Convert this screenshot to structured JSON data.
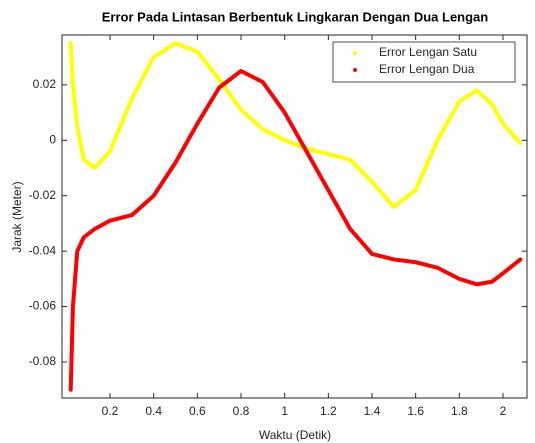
{
  "chart_data": {
    "type": "line",
    "title": "Error Pada Lintasan Berbentuk Lingkaran Dengan Dua Lengan",
    "xlabel": "Waktu (Detik)",
    "ylabel": "Jarak (Meter)",
    "x": [
      0.02,
      0.03,
      0.05,
      0.08,
      0.13,
      0.2,
      0.3,
      0.4,
      0.5,
      0.6,
      0.7,
      0.8,
      0.9,
      1.0,
      1.1,
      1.2,
      1.3,
      1.4,
      1.5,
      1.6,
      1.7,
      1.8,
      1.88,
      1.95,
      2.0,
      2.08
    ],
    "series": [
      {
        "name": "Error Lengan Satu",
        "color": "#ffff00",
        "values": [
          0.035,
          0.02,
          0.005,
          -0.007,
          -0.01,
          -0.004,
          0.015,
          0.03,
          0.035,
          0.032,
          0.022,
          0.011,
          0.004,
          0.0,
          -0.003,
          -0.005,
          -0.007,
          -0.015,
          -0.024,
          -0.018,
          0.0,
          0.014,
          0.018,
          0.013,
          0.006,
          -0.001
        ]
      },
      {
        "name": "Error Lengan Dua",
        "color": "#ff0000",
        "values": [
          -0.09,
          -0.06,
          -0.04,
          -0.035,
          -0.032,
          -0.029,
          -0.027,
          -0.02,
          -0.008,
          0.006,
          0.019,
          0.025,
          0.021,
          0.01,
          -0.004,
          -0.018,
          -0.032,
          -0.041,
          -0.043,
          -0.044,
          -0.046,
          -0.05,
          -0.052,
          -0.051,
          -0.048,
          -0.043
        ]
      }
    ],
    "xlim": [
      -0.02,
      2.11
    ],
    "ylim": [
      -0.093,
      0.038
    ],
    "xticks": [
      0.2,
      0.4,
      0.6,
      0.8,
      1,
      1.2,
      1.4,
      1.6,
      1.8,
      2
    ],
    "yticks": [
      0.02,
      0,
      -0.02,
      -0.04,
      -0.06,
      -0.08
    ],
    "legend": "upper right"
  }
}
